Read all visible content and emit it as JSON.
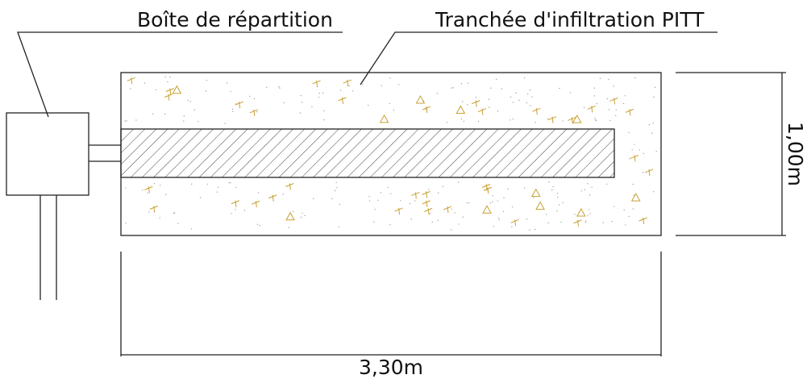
{
  "labels": {
    "distribution_box": "Boîte de répartition",
    "trench": "Tranchée d'infiltration PITT"
  },
  "dimensions": {
    "height": "1,00m",
    "length": "3,30m"
  }
}
